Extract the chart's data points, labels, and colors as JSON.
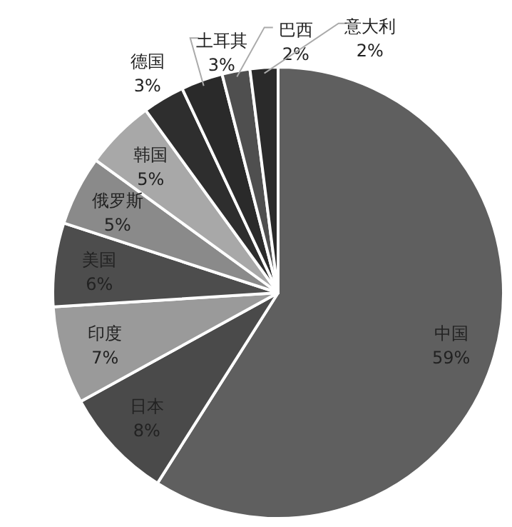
{
  "chart_data": {
    "type": "pie",
    "categories": [
      "中国",
      "日本",
      "印度",
      "美国",
      "俄罗斯",
      "韩国",
      "德国",
      "土耳其",
      "巴西",
      "意大利"
    ],
    "values": [
      59,
      8,
      7,
      6,
      5,
      5,
      3,
      3,
      2,
      2
    ],
    "colors": [
      "#5f5f5f",
      "#4a4a4a",
      "#9a9a9a",
      "#4d4d4d",
      "#8a8a8a",
      "#a8a8a8",
      "#2e2e2e",
      "#2a2a2a",
      "#4f4f4f",
      "#2a2a2a"
    ],
    "value_labels": [
      "59%",
      "8%",
      "7%",
      "6%",
      "5%",
      "5%",
      "3%",
      "3%",
      "2%",
      "2%"
    ]
  }
}
